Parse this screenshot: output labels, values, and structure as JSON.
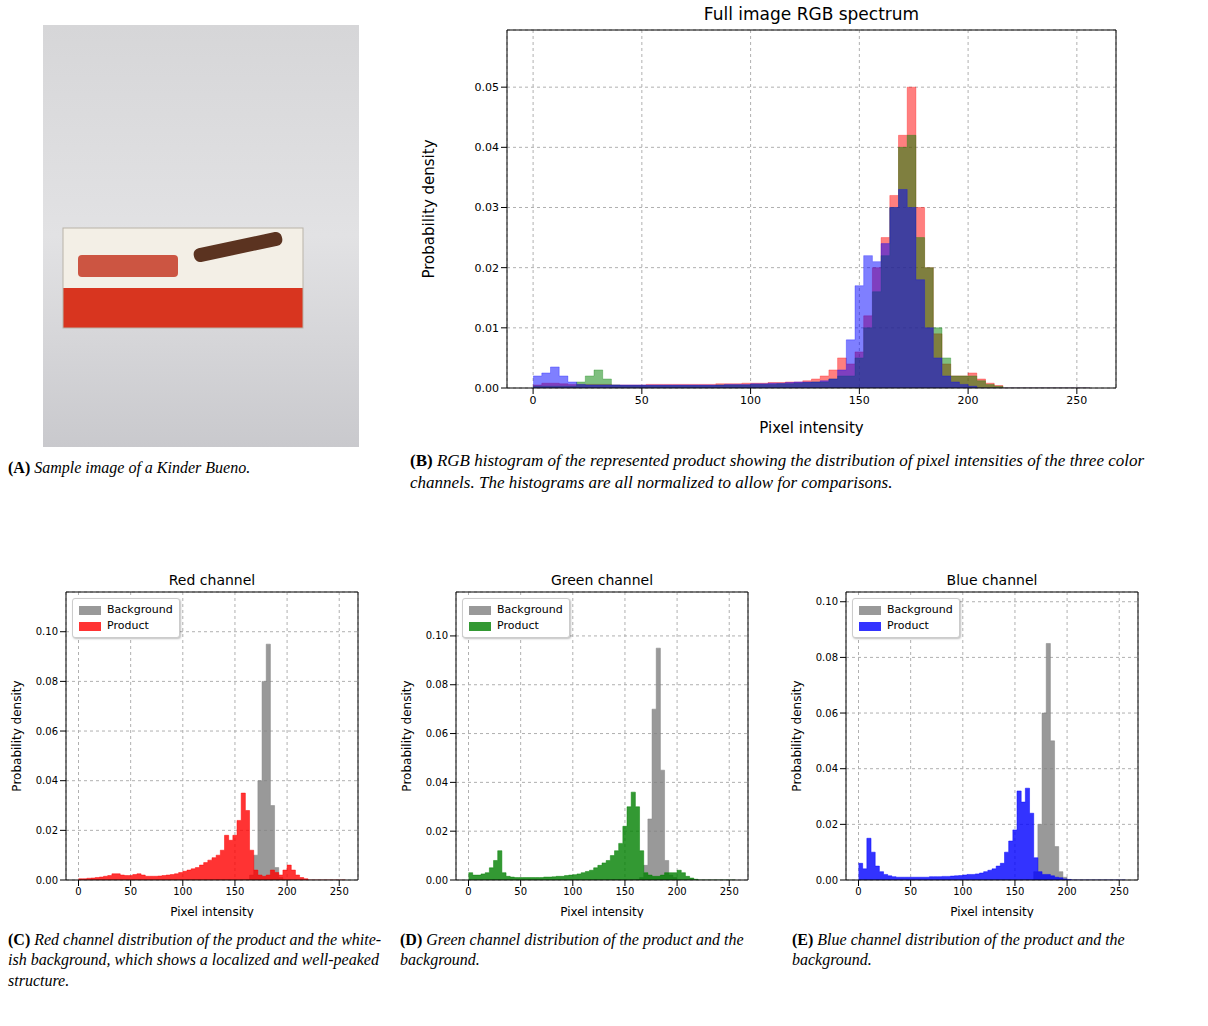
{
  "chart_data": [
    {
      "type": "image",
      "panel": "(A)",
      "caption": "Sample image of a Kinder Bueno."
    },
    {
      "type": "histogram",
      "panel": "(B)",
      "title": "Full image RGB spectrum",
      "caption": "RGB histogram of the represented product showing the distribution of pixel intensities of the three color channels. The histograms are all normalized to allow for comparisons.",
      "xlabel": "Pixel intensity",
      "ylabel": "Probability density",
      "bins": [
        0,
        4,
        8,
        12,
        16,
        20,
        24,
        28,
        32,
        36,
        40,
        44,
        48,
        52,
        56,
        60,
        64,
        68,
        72,
        76,
        80,
        84,
        88,
        92,
        96,
        100,
        104,
        108,
        112,
        116,
        120,
        124,
        128,
        132,
        136,
        140,
        144,
        148,
        152,
        156,
        160,
        164,
        168,
        172,
        176,
        180,
        184,
        188,
        192,
        196,
        200,
        204,
        208,
        212,
        216,
        220,
        224,
        228,
        232,
        236,
        240,
        244,
        248,
        252,
        256
      ],
      "series": [
        {
          "color": "#ff0000",
          "values": [
            0.0005,
            0.0008,
            0.0008,
            0.0007,
            0.0006,
            0.0006,
            0.0006,
            0.0006,
            0.0006,
            0.0005,
            0.0005,
            0.0005,
            0.0005,
            0.0006,
            0.0006,
            0.0006,
            0.0006,
            0.0006,
            0.0006,
            0.0006,
            0.0006,
            0.0007,
            0.0007,
            0.0007,
            0.0008,
            0.0008,
            0.0008,
            0.0009,
            0.0009,
            0.001,
            0.001,
            0.0012,
            0.0015,
            0.002,
            0.003,
            0.005,
            0.004,
            0.006,
            0.012,
            0.02,
            0.025,
            0.032,
            0.042,
            0.05,
            0.03,
            0.02,
            0.009,
            0.004,
            0.002,
            0.002,
            0.0025,
            0.0015,
            0.0008,
            0.0004,
            0,
            0,
            0,
            0,
            0,
            0,
            0,
            0,
            0,
            0
          ]
        },
        {
          "color": "#008000",
          "values": [
            0.0003,
            0.0003,
            0.0003,
            0.0003,
            0.0003,
            0.001,
            0.002,
            0.003,
            0.0015,
            0.0005,
            0.0004,
            0.0004,
            0.0004,
            0.0004,
            0.0004,
            0.0004,
            0.0004,
            0.0004,
            0.0004,
            0.0004,
            0.0004,
            0.0005,
            0.0005,
            0.0005,
            0.0005,
            0.0006,
            0.0006,
            0.0006,
            0.0007,
            0.0007,
            0.0008,
            0.0009,
            0.001,
            0.001,
            0.0015,
            0.002,
            0.002,
            0.005,
            0.01,
            0.016,
            0.022,
            0.03,
            0.04,
            0.042,
            0.025,
            0.02,
            0.01,
            0.005,
            0.002,
            0.002,
            0.002,
            0.0012,
            0.0006,
            0.0003,
            0,
            0,
            0,
            0,
            0,
            0,
            0,
            0,
            0,
            0
          ]
        },
        {
          "color": "#0000ff",
          "values": [
            0.002,
            0.0025,
            0.0035,
            0.002,
            0.001,
            0.0006,
            0.0005,
            0.0005,
            0.0005,
            0.0005,
            0.0005,
            0.0005,
            0.0005,
            0.0005,
            0.0005,
            0.0005,
            0.0005,
            0.0005,
            0.0005,
            0.0005,
            0.0005,
            0.0005,
            0.0006,
            0.0006,
            0.0006,
            0.0007,
            0.0007,
            0.0008,
            0.0008,
            0.0009,
            0.001,
            0.001,
            0.001,
            0.0012,
            0.0015,
            0.003,
            0.008,
            0.017,
            0.022,
            0.021,
            0.024,
            0.03,
            0.033,
            0.03,
            0.018,
            0.01,
            0.005,
            0.002,
            0.001,
            0.0006,
            0.0003,
            0,
            0,
            0,
            0,
            0,
            0,
            0,
            0,
            0,
            0,
            0,
            0,
            0
          ]
        }
      ],
      "xlim": [
        -12,
        268
      ],
      "xticks": [
        0,
        50,
        100,
        150,
        200,
        250
      ],
      "ylim": [
        0,
        0.0595
      ],
      "yticks": [
        {
          "value": 0,
          "label": "0.00"
        },
        0.01,
        0.02,
        0.03,
        0.04,
        0.05
      ],
      "grid": true
    },
    {
      "type": "histogram",
      "panel": "(C)",
      "title": "Red channel",
      "caption": "Red channel distribution of the product and the white-ish background, which shows a localized and well-peaked structure.",
      "xlabel": "Pixel intensity",
      "ylabel": "Probability density",
      "bins": [
        0,
        4,
        8,
        12,
        16,
        20,
        24,
        28,
        32,
        36,
        40,
        44,
        48,
        52,
        56,
        60,
        64,
        68,
        72,
        76,
        80,
        84,
        88,
        92,
        96,
        100,
        104,
        108,
        112,
        116,
        120,
        124,
        128,
        132,
        136,
        140,
        144,
        148,
        152,
        156,
        160,
        164,
        168,
        172,
        176,
        180,
        184,
        188,
        192,
        196,
        200,
        204,
        208,
        212,
        216,
        220,
        224,
        228,
        232,
        236,
        240,
        244,
        248,
        252,
        256
      ],
      "series": [
        {
          "name": "Background",
          "color": "#808080",
          "values": [
            0,
            0,
            0,
            0,
            0,
            0,
            0,
            0,
            0,
            0,
            0,
            0,
            0,
            0,
            0,
            0,
            0,
            0,
            0,
            0,
            0,
            0,
            0,
            0,
            0,
            0,
            0,
            0,
            0,
            0,
            0,
            0,
            0,
            0,
            0,
            0,
            0,
            0,
            0,
            0,
            0,
            0.002,
            0.01,
            0.04,
            0.08,
            0.095,
            0.03,
            0.005,
            0.001,
            0,
            0,
            0,
            0,
            0,
            0,
            0,
            0,
            0,
            0,
            0,
            0,
            0,
            0,
            0
          ]
        },
        {
          "name": "Product",
          "color": "#ff0000",
          "values": [
            0.0005,
            0.0005,
            0.0007,
            0.0008,
            0.001,
            0.0012,
            0.0015,
            0.0018,
            0.0025,
            0.0025,
            0.002,
            0.0018,
            0.0018,
            0.0022,
            0.0025,
            0.002,
            0.0015,
            0.0015,
            0.0015,
            0.0016,
            0.0018,
            0.002,
            0.0022,
            0.0025,
            0.003,
            0.0035,
            0.004,
            0.0045,
            0.005,
            0.006,
            0.007,
            0.008,
            0.009,
            0.01,
            0.012,
            0.018,
            0.016,
            0.018,
            0.024,
            0.035,
            0.028,
            0.012,
            0.004,
            0.002,
            0.0015,
            0.002,
            0.004,
            0.003,
            0.002,
            0.004,
            0.006,
            0.004,
            0.002,
            0.001,
            0.0005,
            0,
            0,
            0,
            0,
            0,
            0,
            0,
            0,
            0
          ]
        }
      ],
      "xlim": [
        -12,
        268
      ],
      "xticks": [
        0,
        50,
        100,
        150,
        200,
        250
      ],
      "ylim": [
        0,
        0.116
      ],
      "yticks": [
        {
          "value": 0,
          "label": "0.00"
        },
        0.02,
        0.04,
        0.06,
        0.08,
        {
          "value": 0.1,
          "label": "0.10"
        }
      ],
      "grid": true,
      "legend": "upper left"
    },
    {
      "type": "histogram",
      "panel": "(D)",
      "title": "Green channel",
      "caption": "Green channel distribution of the product and the background.",
      "xlabel": "Pixel intensity",
      "ylabel": "Probability density",
      "bins": [
        0,
        4,
        8,
        12,
        16,
        20,
        24,
        28,
        32,
        36,
        40,
        44,
        48,
        52,
        56,
        60,
        64,
        68,
        72,
        76,
        80,
        84,
        88,
        92,
        96,
        100,
        104,
        108,
        112,
        116,
        120,
        124,
        128,
        132,
        136,
        140,
        144,
        148,
        152,
        156,
        160,
        164,
        168,
        172,
        176,
        180,
        184,
        188,
        192,
        196,
        200,
        204,
        208,
        212,
        216,
        220,
        224,
        228,
        232,
        236,
        240,
        244,
        248,
        252,
        256
      ],
      "series": [
        {
          "name": "Background",
          "color": "#808080",
          "values": [
            0,
            0,
            0,
            0,
            0,
            0,
            0,
            0,
            0,
            0,
            0,
            0,
            0,
            0,
            0,
            0,
            0,
            0,
            0,
            0,
            0,
            0,
            0,
            0,
            0,
            0,
            0,
            0,
            0,
            0,
            0,
            0,
            0,
            0,
            0,
            0,
            0,
            0,
            0,
            0,
            0,
            0.001,
            0.006,
            0.025,
            0.07,
            0.095,
            0.045,
            0.008,
            0.002,
            0.001,
            0,
            0,
            0,
            0,
            0,
            0,
            0,
            0,
            0,
            0,
            0,
            0,
            0,
            0
          ]
        },
        {
          "name": "Product",
          "color": "#008000",
          "values": [
            0.003,
            0.002,
            0.002,
            0.0025,
            0.003,
            0.005,
            0.008,
            0.012,
            0.003,
            0.0015,
            0.0012,
            0.001,
            0.001,
            0.001,
            0.001,
            0.001,
            0.001,
            0.001,
            0.0012,
            0.0012,
            0.0013,
            0.0015,
            0.0015,
            0.0018,
            0.002,
            0.0022,
            0.0025,
            0.003,
            0.0035,
            0.004,
            0.005,
            0.006,
            0.007,
            0.008,
            0.01,
            0.012,
            0.015,
            0.022,
            0.03,
            0.036,
            0.03,
            0.012,
            0.003,
            0.002,
            0.0015,
            0.0015,
            0.002,
            0.003,
            0.003,
            0.003,
            0.004,
            0.003,
            0.0015,
            0.0008,
            0.0003,
            0,
            0,
            0,
            0,
            0,
            0,
            0,
            0,
            0
          ]
        }
      ],
      "xlim": [
        -12,
        268
      ],
      "xticks": [
        0,
        50,
        100,
        150,
        200,
        250
      ],
      "ylim": [
        0,
        0.118
      ],
      "yticks": [
        {
          "value": 0,
          "label": "0.00"
        },
        0.02,
        0.04,
        0.06,
        0.08,
        {
          "value": 0.1,
          "label": "0.10"
        }
      ],
      "grid": true,
      "legend": "upper left"
    },
    {
      "type": "histogram",
      "panel": "(E)",
      "title": "Blue channel",
      "caption": "Blue channel distribution of the product and the background.",
      "xlabel": "Pixel intensity",
      "ylabel": "Probability density",
      "bins": [
        0,
        4,
        8,
        12,
        16,
        20,
        24,
        28,
        32,
        36,
        40,
        44,
        48,
        52,
        56,
        60,
        64,
        68,
        72,
        76,
        80,
        84,
        88,
        92,
        96,
        100,
        104,
        108,
        112,
        116,
        120,
        124,
        128,
        132,
        136,
        140,
        144,
        148,
        152,
        156,
        160,
        164,
        168,
        172,
        176,
        180,
        184,
        188,
        192,
        196,
        200,
        204,
        208,
        212,
        216,
        220,
        224,
        228,
        232,
        236,
        240,
        244,
        248,
        252,
        256
      ],
      "series": [
        {
          "name": "Background",
          "color": "#808080",
          "values": [
            0,
            0,
            0,
            0,
            0,
            0,
            0,
            0,
            0,
            0,
            0,
            0,
            0,
            0,
            0,
            0,
            0,
            0,
            0,
            0,
            0,
            0,
            0,
            0,
            0,
            0,
            0,
            0,
            0,
            0,
            0,
            0,
            0,
            0,
            0,
            0,
            0,
            0,
            0,
            0,
            0,
            0,
            0.003,
            0.02,
            0.06,
            0.085,
            0.05,
            0.012,
            0.003,
            0.001,
            0,
            0,
            0,
            0,
            0,
            0,
            0,
            0,
            0,
            0,
            0,
            0,
            0,
            0
          ]
        },
        {
          "name": "Product",
          "color": "#0000ff",
          "values": [
            0.006,
            0.004,
            0.015,
            0.01,
            0.005,
            0.003,
            0.002,
            0.0015,
            0.0012,
            0.001,
            0.001,
            0.001,
            0.001,
            0.001,
            0.001,
            0.001,
            0.001,
            0.0012,
            0.0012,
            0.0012,
            0.0013,
            0.0013,
            0.0014,
            0.0015,
            0.0016,
            0.0018,
            0.002,
            0.002,
            0.0022,
            0.0025,
            0.003,
            0.0035,
            0.004,
            0.005,
            0.006,
            0.01,
            0.014,
            0.018,
            0.032,
            0.028,
            0.033,
            0.024,
            0.008,
            0.003,
            0.002,
            0.002,
            0.0015,
            0.001,
            0.0008,
            0.0004,
            0.0002,
            0,
            0,
            0,
            0,
            0,
            0,
            0,
            0,
            0,
            0,
            0,
            0,
            0
          ]
        }
      ],
      "xlim": [
        -12,
        268
      ],
      "xticks": [
        0,
        50,
        100,
        150,
        200,
        250
      ],
      "ylim": [
        0,
        0.1035
      ],
      "yticks": [
        {
          "value": 0,
          "label": "0.00"
        },
        0.02,
        0.04,
        0.06,
        0.08,
        {
          "value": 0.1,
          "label": "0.10"
        }
      ],
      "grid": true,
      "legend": "upper left"
    }
  ]
}
